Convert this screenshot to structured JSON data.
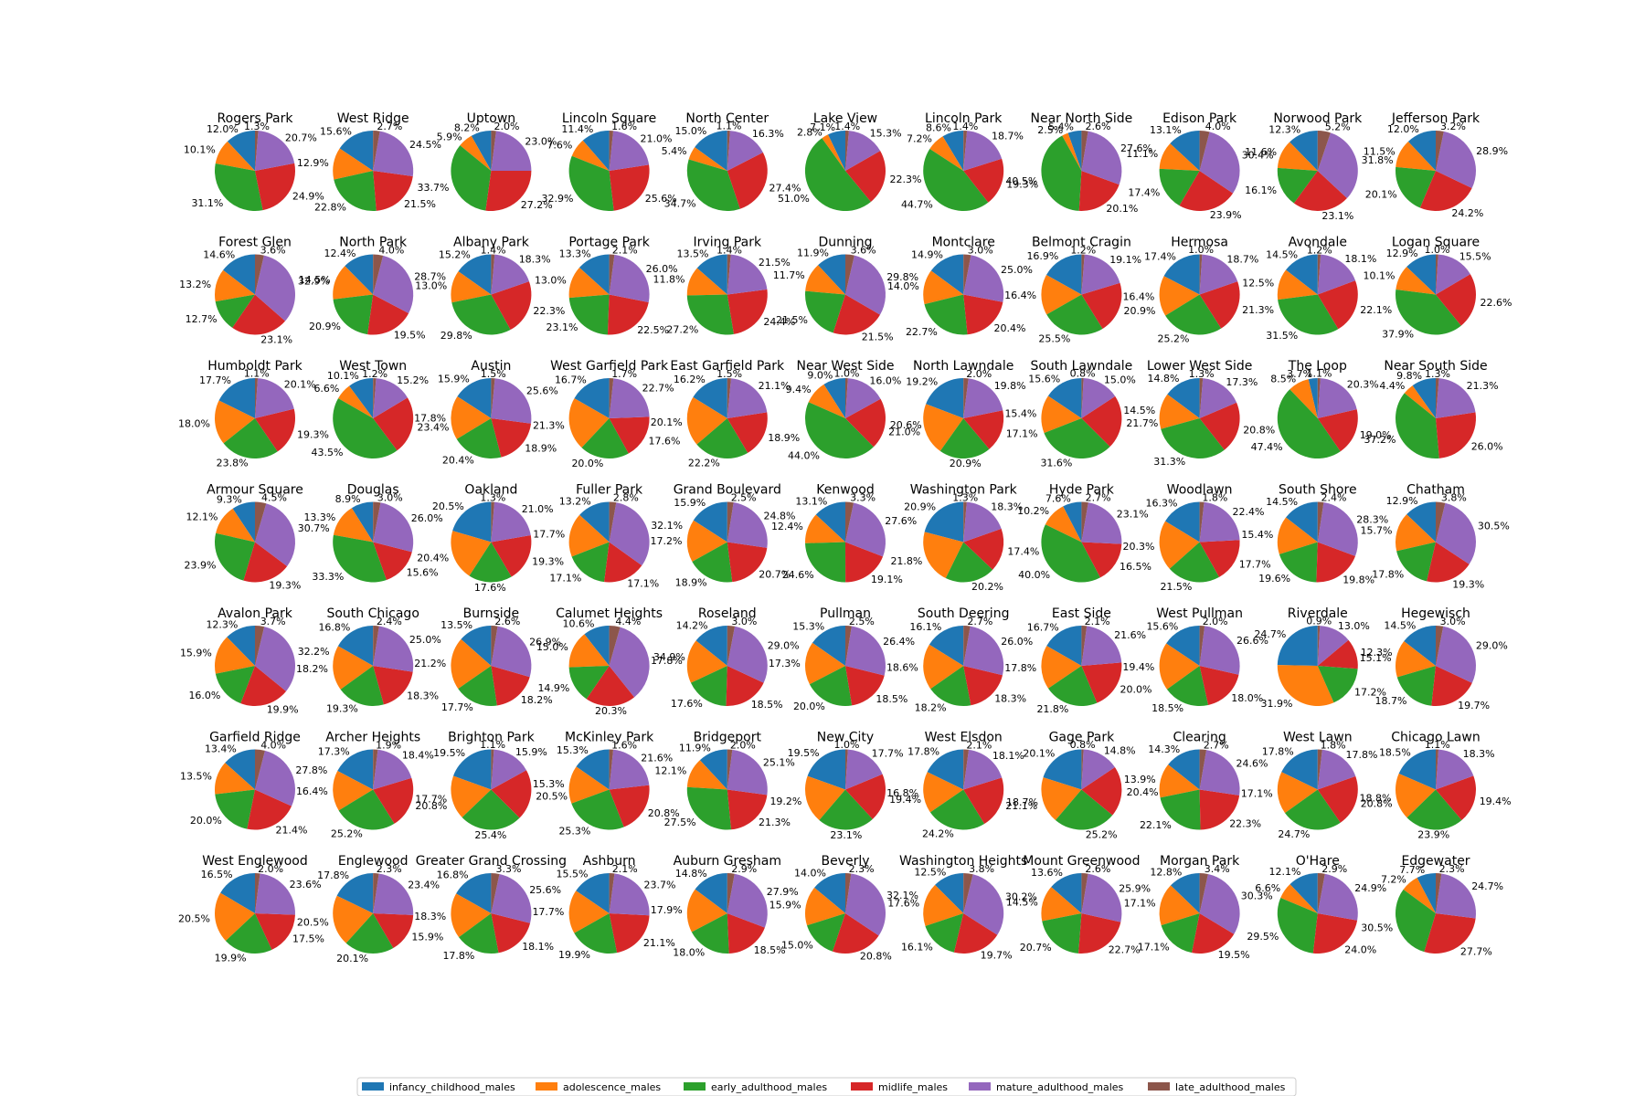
{
  "chart_data": {
    "type": "pie",
    "series_names": [
      "infancy_childhood_males",
      "adolescence_males",
      "early_adulthood_males",
      "midlife_males",
      "mature_adulthood_males",
      "late_adulthood_males"
    ],
    "colors": [
      "#1f77b4",
      "#ff7f0e",
      "#2ca02c",
      "#d62728",
      "#9467bd",
      "#8c564b"
    ],
    "legend_position": "bottom-center",
    "pies": [
      {
        "title": "Rogers Park",
        "values": [
          12.0,
          10.1,
          31.1,
          24.9,
          20.7,
          1.3
        ]
      },
      {
        "title": "West Ridge",
        "values": [
          15.6,
          12.9,
          22.8,
          21.5,
          24.5,
          2.7
        ]
      },
      {
        "title": "Uptown",
        "values": [
          8.2,
          5.9,
          33.7,
          27.2,
          23.0,
          2.0
        ]
      },
      {
        "title": "Lincoln Square",
        "values": [
          11.4,
          7.6,
          32.9,
          25.6,
          21.0,
          1.6
        ]
      },
      {
        "title": "North Center",
        "values": [
          15.0,
          5.4,
          34.7,
          27.4,
          16.3,
          1.1
        ]
      },
      {
        "title": "Lake View",
        "values": [
          7.1,
          2.8,
          51.0,
          22.3,
          15.3,
          1.4
        ]
      },
      {
        "title": "Lincoln Park",
        "values": [
          8.6,
          7.2,
          44.7,
          19.3,
          18.7,
          1.4
        ]
      },
      {
        "title": "Near North Side",
        "values": [
          5.4,
          2.5,
          40.5,
          20.1,
          27.6,
          2.6
        ]
      },
      {
        "title": "Edison Park",
        "values": [
          13.1,
          11.1,
          17.4,
          23.9,
          30.4,
          4.0
        ]
      },
      {
        "title": "Norwood Park",
        "values": [
          12.3,
          11.6,
          16.1,
          23.1,
          31.8,
          5.2
        ]
      },
      {
        "title": "Jefferson Park",
        "values": [
          12.0,
          11.5,
          20.1,
          24.2,
          28.9,
          3.2
        ]
      },
      {
        "title": "Forest Glen",
        "values": [
          14.6,
          13.2,
          12.7,
          23.1,
          32.9,
          3.6
        ]
      },
      {
        "title": "North Park",
        "values": [
          12.4,
          14.5,
          20.9,
          19.5,
          28.7,
          4.0
        ]
      },
      {
        "title": "Albany Park",
        "values": [
          15.2,
          13.0,
          29.8,
          22.3,
          18.3,
          1.4
        ]
      },
      {
        "title": "Portage Park",
        "values": [
          13.3,
          13.0,
          23.1,
          22.5,
          26.0,
          2.1
        ]
      },
      {
        "title": "Irving Park",
        "values": [
          13.5,
          11.8,
          27.2,
          24.4,
          21.5,
          1.4
        ]
      },
      {
        "title": "Dunning",
        "values": [
          11.9,
          11.7,
          21.5,
          21.5,
          29.8,
          3.6
        ]
      },
      {
        "title": "Montclare",
        "values": [
          14.9,
          14.0,
          22.7,
          20.4,
          25.0,
          3.0
        ]
      },
      {
        "title": "Belmont Cragin",
        "values": [
          16.9,
          16.4,
          25.5,
          20.9,
          19.1,
          1.2
        ]
      },
      {
        "title": "Hermosa",
        "values": [
          17.4,
          16.4,
          25.2,
          21.3,
          18.7,
          1.0
        ]
      },
      {
        "title": "Avondale",
        "values": [
          14.5,
          12.5,
          31.5,
          22.1,
          18.1,
          1.2
        ]
      },
      {
        "title": "Logan Square",
        "values": [
          12.9,
          10.1,
          37.9,
          22.6,
          15.5,
          1.0
        ]
      },
      {
        "title": "Humboldt Park",
        "values": [
          17.7,
          18.0,
          23.8,
          19.3,
          20.1,
          1.1
        ]
      },
      {
        "title": "West Town",
        "values": [
          10.1,
          6.6,
          43.5,
          23.4,
          15.2,
          1.2
        ]
      },
      {
        "title": "Austin",
        "values": [
          15.9,
          17.8,
          20.4,
          18.9,
          25.6,
          1.5
        ]
      },
      {
        "title": "West Garfield Park",
        "values": [
          16.7,
          21.3,
          20.0,
          17.6,
          22.7,
          1.7
        ]
      },
      {
        "title": "East Garfield Park",
        "values": [
          16.2,
          20.1,
          22.2,
          18.9,
          21.1,
          1.5
        ]
      },
      {
        "title": "Near West Side",
        "values": [
          9.0,
          9.4,
          44.0,
          20.6,
          16.0,
          1.0
        ]
      },
      {
        "title": "North Lawndale",
        "values": [
          19.2,
          21.0,
          20.9,
          17.1,
          19.8,
          2.0
        ]
      },
      {
        "title": "South Lawndale",
        "values": [
          15.6,
          15.4,
          31.6,
          21.7,
          15.0,
          0.8
        ]
      },
      {
        "title": "Lower West Side",
        "values": [
          14.8,
          14.5,
          31.3,
          20.8,
          17.3,
          1.3
        ]
      },
      {
        "title": "The Loop",
        "values": [
          3.7,
          8.5,
          47.4,
          19.0,
          20.3,
          1.1
        ]
      },
      {
        "title": "Near South Side",
        "values": [
          9.8,
          4.4,
          37.2,
          26.0,
          21.3,
          1.3
        ]
      },
      {
        "title": "Armour Square",
        "values": [
          9.3,
          12.1,
          23.9,
          19.3,
          30.7,
          4.5
        ]
      },
      {
        "title": "Douglas",
        "values": [
          8.9,
          13.3,
          33.3,
          15.6,
          26.0,
          3.0
        ]
      },
      {
        "title": "Oakland",
        "values": [
          20.5,
          20.4,
          17.6,
          19.3,
          21.0,
          1.3
        ]
      },
      {
        "title": "Fuller Park",
        "values": [
          13.2,
          17.7,
          17.1,
          17.1,
          32.1,
          2.8
        ]
      },
      {
        "title": "Grand Boulevard",
        "values": [
          15.9,
          17.2,
          18.9,
          20.7,
          24.8,
          2.5
        ]
      },
      {
        "title": "Kenwood",
        "values": [
          13.1,
          12.4,
          24.6,
          19.1,
          27.6,
          3.3
        ]
      },
      {
        "title": "Washington Park",
        "values": [
          20.9,
          21.8,
          20.2,
          17.4,
          18.3,
          1.3
        ]
      },
      {
        "title": "Hyde Park",
        "values": [
          7.6,
          10.2,
          40.0,
          16.5,
          23.1,
          2.7
        ]
      },
      {
        "title": "Woodlawn",
        "values": [
          16.3,
          20.3,
          21.5,
          17.7,
          22.4,
          1.8
        ]
      },
      {
        "title": "South Shore",
        "values": [
          14.5,
          15.4,
          19.6,
          19.8,
          28.3,
          2.4
        ]
      },
      {
        "title": "Chatham",
        "values": [
          12.9,
          15.7,
          17.8,
          19.3,
          30.5,
          3.8
        ]
      },
      {
        "title": "Avalon Park",
        "values": [
          12.3,
          15.9,
          16.0,
          19.9,
          32.2,
          3.7
        ]
      },
      {
        "title": "South Chicago",
        "values": [
          16.8,
          18.2,
          19.3,
          18.3,
          25.0,
          2.4
        ]
      },
      {
        "title": "Burnside",
        "values": [
          13.5,
          21.2,
          17.7,
          18.2,
          26.9,
          2.6
        ]
      },
      {
        "title": "Calumet Heights",
        "values": [
          10.6,
          15.0,
          14.9,
          20.3,
          34.9,
          4.4
        ]
      },
      {
        "title": "Roseland",
        "values": [
          14.2,
          17.8,
          17.6,
          18.5,
          29.0,
          3.0
        ]
      },
      {
        "title": "Pullman",
        "values": [
          15.3,
          17.3,
          20.0,
          18.5,
          26.4,
          2.5
        ]
      },
      {
        "title": "South Deering",
        "values": [
          16.1,
          18.6,
          18.2,
          18.3,
          26.0,
          2.7
        ]
      },
      {
        "title": "East Side",
        "values": [
          16.7,
          17.8,
          21.8,
          20.0,
          21.6,
          2.1
        ]
      },
      {
        "title": "West Pullman",
        "values": [
          15.6,
          19.4,
          18.5,
          18.0,
          26.6,
          2.0
        ]
      },
      {
        "title": "Riverdale",
        "values": [
          24.7,
          31.9,
          17.2,
          12.3,
          13.0,
          0.9
        ]
      },
      {
        "title": "Hegewisch",
        "values": [
          14.5,
          15.1,
          18.7,
          19.7,
          29.0,
          3.0
        ]
      },
      {
        "title": "Garfield Ridge",
        "values": [
          13.4,
          13.5,
          20.0,
          21.4,
          27.8,
          4.0
        ]
      },
      {
        "title": "Archer Heights",
        "values": [
          17.3,
          16.4,
          25.2,
          20.8,
          18.4,
          1.9
        ]
      },
      {
        "title": "Brighton Park",
        "values": [
          19.5,
          17.7,
          25.4,
          20.5,
          15.9,
          1.1
        ]
      },
      {
        "title": "McKinley Park",
        "values": [
          15.3,
          15.3,
          25.3,
          20.8,
          21.6,
          1.6
        ]
      },
      {
        "title": "Bridgeport",
        "values": [
          11.9,
          12.1,
          27.5,
          21.3,
          25.1,
          2.0
        ]
      },
      {
        "title": "New City",
        "values": [
          19.5,
          19.2,
          23.1,
          19.4,
          17.7,
          1.0
        ]
      },
      {
        "title": "West Elsdon",
        "values": [
          17.8,
          16.8,
          24.2,
          21.1,
          18.1,
          2.1
        ]
      },
      {
        "title": "Gage Park",
        "values": [
          20.1,
          18.7,
          25.2,
          20.4,
          14.8,
          0.8
        ]
      },
      {
        "title": "Clearing",
        "values": [
          14.3,
          13.9,
          22.1,
          22.3,
          24.6,
          2.7
        ]
      },
      {
        "title": "West Lawn",
        "values": [
          17.8,
          17.1,
          24.7,
          20.8,
          17.8,
          1.8
        ]
      },
      {
        "title": "Chicago Lawn",
        "values": [
          18.5,
          18.8,
          23.9,
          19.4,
          18.3,
          1.1
        ]
      },
      {
        "title": "West Englewood",
        "values": [
          16.5,
          20.5,
          19.9,
          17.5,
          23.6,
          2.0
        ]
      },
      {
        "title": "Englewood",
        "values": [
          17.8,
          20.5,
          20.1,
          15.9,
          23.4,
          2.3
        ]
      },
      {
        "title": "Greater Grand Crossing",
        "values": [
          16.8,
          18.3,
          17.8,
          18.1,
          25.6,
          3.3
        ]
      },
      {
        "title": "Ashburn",
        "values": [
          15.5,
          17.7,
          19.9,
          21.1,
          23.7,
          2.1
        ]
      },
      {
        "title": "Auburn Gresham",
        "values": [
          14.8,
          17.9,
          18.0,
          18.5,
          27.9,
          2.9
        ]
      },
      {
        "title": "Beverly",
        "values": [
          14.0,
          15.9,
          15.0,
          20.8,
          32.1,
          2.3
        ]
      },
      {
        "title": "Washington Heights",
        "values": [
          12.5,
          17.6,
          16.1,
          19.7,
          30.2,
          3.8
        ]
      },
      {
        "title": "Mount Greenwood",
        "values": [
          13.6,
          14.5,
          20.7,
          22.7,
          25.9,
          2.6
        ]
      },
      {
        "title": "Morgan Park",
        "values": [
          12.8,
          17.1,
          17.1,
          19.5,
          30.3,
          3.4
        ]
      },
      {
        "title": "O'Hare",
        "values": [
          12.1,
          6.6,
          29.5,
          24.0,
          24.9,
          2.9
        ]
      },
      {
        "title": "Edgewater",
        "values": [
          7.7,
          7.2,
          30.5,
          27.7,
          24.7,
          2.3
        ]
      }
    ]
  }
}
